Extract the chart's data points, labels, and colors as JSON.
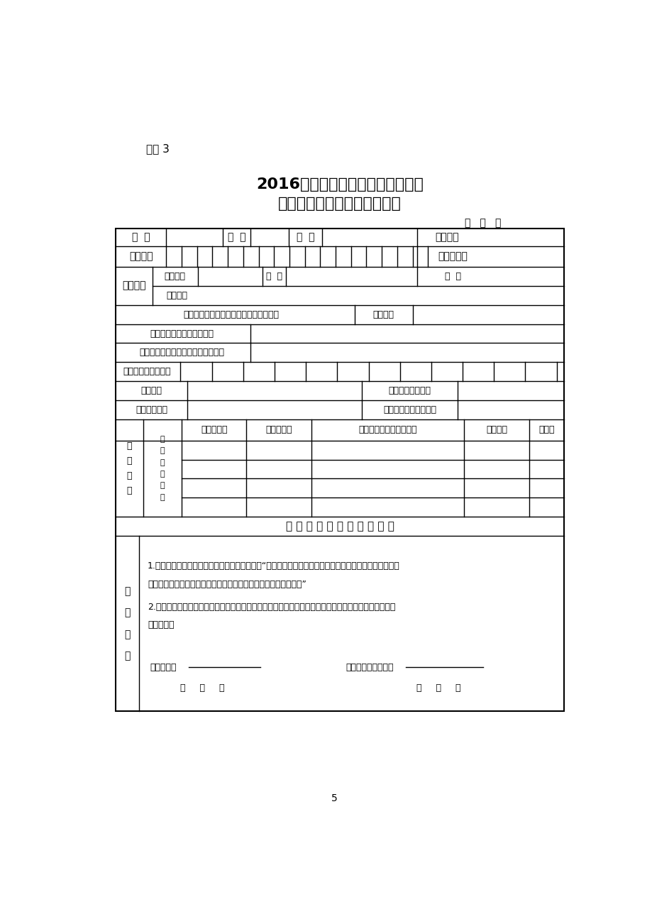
{
  "bg_color": "#ffffff",
  "text_color": "#000000",
  "title1": "2016年非甘肃省户籍进城务工人员",
  "title2": "随迁子女高考报名资格审查表",
  "annex_label": "附件 3",
  "date_label": "年   月   日",
  "page_number": "5",
  "cert_label": "高中或中职生毕业证编号（往届生填写）",
  "cert_right": "发证单位",
  "school1_label": "现就读高中学校或毕业学校",
  "school2_label": "何时在何地、何校参加学考（会考）",
  "xuehao_label": "学籍辅号（学考号）",
  "xuejiji_label": "学籍学校",
  "xuejiji_right": "学籍学校所在县区",
  "shiji_label": "实际就读学校",
  "shiji_right": "实际就读学校所在县区",
  "history_col1": "自何年何月",
  "history_col2": "至何年何月",
  "history_col3": "在何地何单位学习或工作",
  "history_col4": "任何职务",
  "history_col5": "证明人",
  "center_notice": "以 上 内 容 由 考 生 本 人 填 写",
  "promise_text1": "1.已知晓国家对高考报名弄虚作假的处理规定：“通过伪造证件、证明、档案及其他材料获得报考资格的，",
  "promise_text2": "其高考各阶段、各科成绩无效，并按照有关规定处理相关责任人。”",
  "promise_text3": "2.我对高考报名时所填写的各类表格内容及提供的证明资料的真实性、有效性负责，如有虚假，愿意承担",
  "promise_text4": "一切后果。",
  "sign_label": "考生签字：",
  "guardian_label": "监护人（父或母）：",
  "date_bottom": "年     月     日",
  "xingming": "姓  名",
  "xingbie": "性  别",
  "minzu": "民  族",
  "lianxi": "联系电话",
  "shenfenzheng": "身份证号",
  "yingjie": "应往届类别",
  "hujixinxi": "户籍信息",
  "huzhu": "户主姓名",
  "huhao": "户  号",
  "hubie": "户  别",
  "huzhuaddr": "户籍住址",
  "benren": "本\n人\n简\n历",
  "gaogaozhong": "（\n高\n中\n阶\n段\n）",
  "kaosheng_chegnuo": "考\n生\n承\n诺"
}
